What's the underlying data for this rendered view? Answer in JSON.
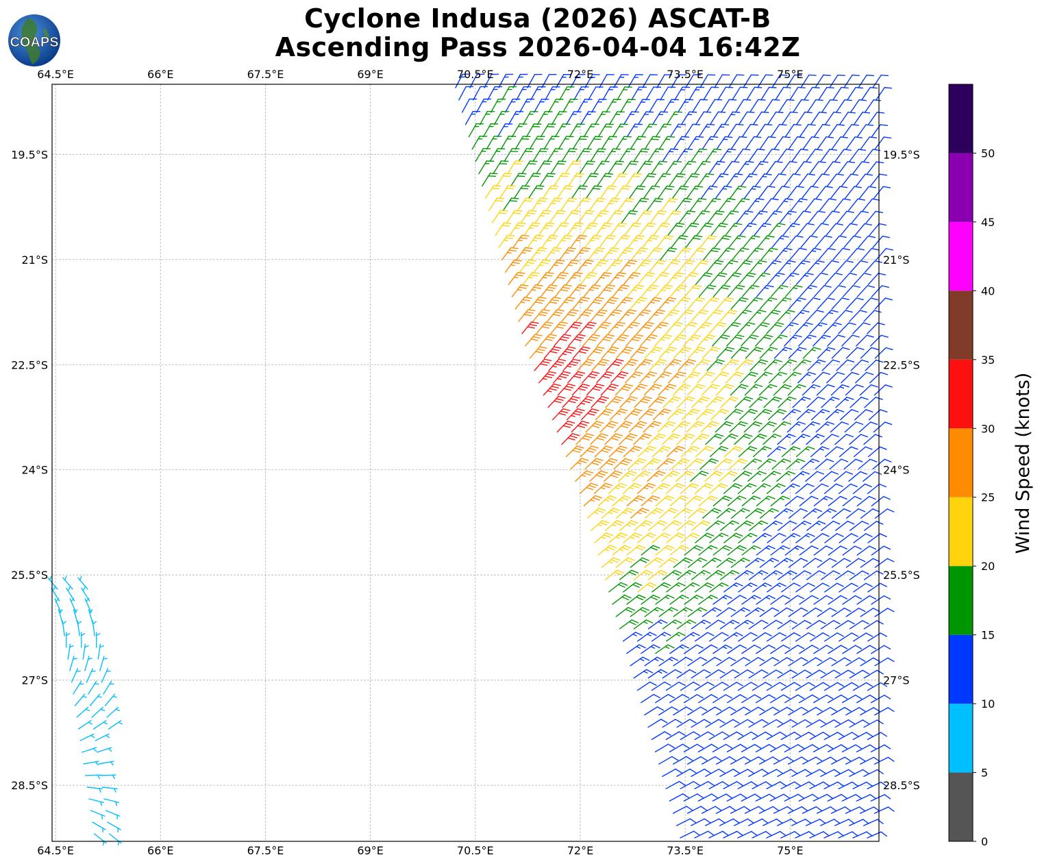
{
  "title": {
    "line1": "Cyclone Indusa (2026) ASCAT-B",
    "line2": "Ascending Pass 2026-04-04 16:42Z"
  },
  "logo": {
    "text": "COAPS",
    "icon": "globe-icon"
  },
  "map": {
    "lon_range": [
      64.45,
      76.27
    ],
    "lat_range": [
      -29.3,
      -18.5
    ],
    "lon_ticks": [
      "64.5°E",
      "66°E",
      "67.5°E",
      "69°E",
      "70.5°E",
      "72°E",
      "73.5°E",
      "75°E"
    ],
    "lon_tick_values": [
      64.5,
      66,
      67.5,
      69,
      70.5,
      72,
      73.5,
      75
    ],
    "lat_ticks": [
      "19.5°S",
      "21°S",
      "22.5°S",
      "24°S",
      "25.5°S",
      "27°S",
      "28.5°S"
    ],
    "lat_tick_values": [
      -19.5,
      -21,
      -22.5,
      -24,
      -25.5,
      -27,
      -28.5
    ],
    "grid": true
  },
  "colorbar": {
    "label": "Wind Speed (knots)",
    "ticks": [
      "0",
      "5",
      "10",
      "15",
      "20",
      "25",
      "30",
      "35",
      "40",
      "45",
      "50"
    ],
    "bins": [
      {
        "min": 0,
        "max": 5,
        "color": "#555555"
      },
      {
        "min": 5,
        "max": 10,
        "color": "#00bfff"
      },
      {
        "min": 10,
        "max": 15,
        "color": "#0038ff"
      },
      {
        "min": 15,
        "max": 20,
        "color": "#009600"
      },
      {
        "min": 20,
        "max": 25,
        "color": "#ffd40f"
      },
      {
        "min": 25,
        "max": 30,
        "color": "#ff8c00"
      },
      {
        "min": 30,
        "max": 35,
        "color": "#ff1010"
      },
      {
        "min": 35,
        "max": 40,
        "color": "#803c28"
      },
      {
        "min": 40,
        "max": 45,
        "color": "#ff00ff"
      },
      {
        "min": 45,
        "max": 50,
        "color": "#8a00b0"
      },
      {
        "min": 50,
        "max": 55,
        "color": "#2e005e"
      }
    ]
  }
}
